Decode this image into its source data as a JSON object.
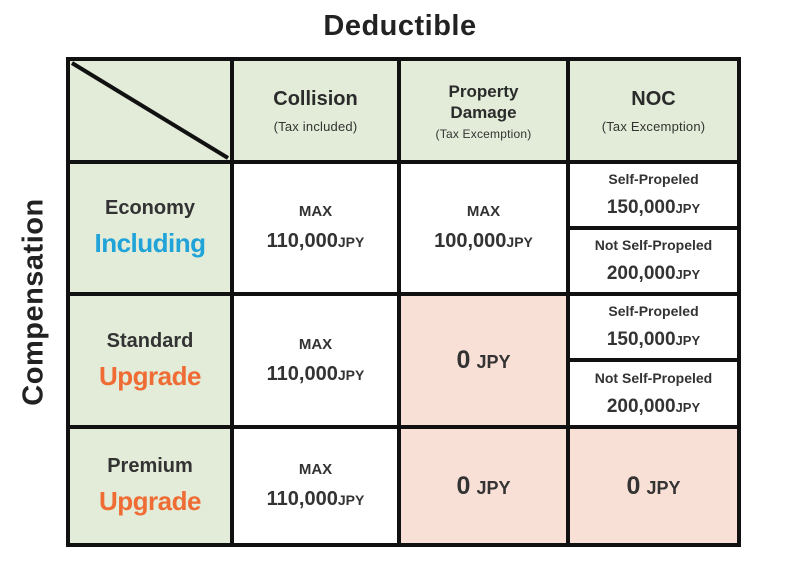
{
  "title": "Deductible",
  "side_label": "Compensation",
  "columns": [
    {
      "name": "Collision",
      "sub": "(Tax included)"
    },
    {
      "name_lines": [
        "Property",
        "Damage"
      ],
      "sub": "(Tax Excemption)"
    },
    {
      "name": "NOC",
      "sub": "(Tax Excemption)"
    }
  ],
  "rows": [
    {
      "name": "Economy",
      "tag": "Including"
    },
    {
      "name": "Standard",
      "tag": "Upgrade"
    },
    {
      "name": "Premium",
      "tag": "Upgrade"
    }
  ],
  "values": {
    "max_label": "MAX",
    "collision": "110,000",
    "property_economy": "100,000",
    "currency": "JPY",
    "zero": "0",
    "noc_self_label": "Self-Propeled",
    "noc_self_amount": "150,000",
    "noc_not_self_label": "Not Self-Propeled",
    "noc_not_self_amount": "200,000"
  },
  "colors": {
    "header_bg": "#e2ecd8",
    "zero_bg": "#f9e0d7",
    "including": "#1fa3d8",
    "upgrade": "#ef6c34"
  }
}
